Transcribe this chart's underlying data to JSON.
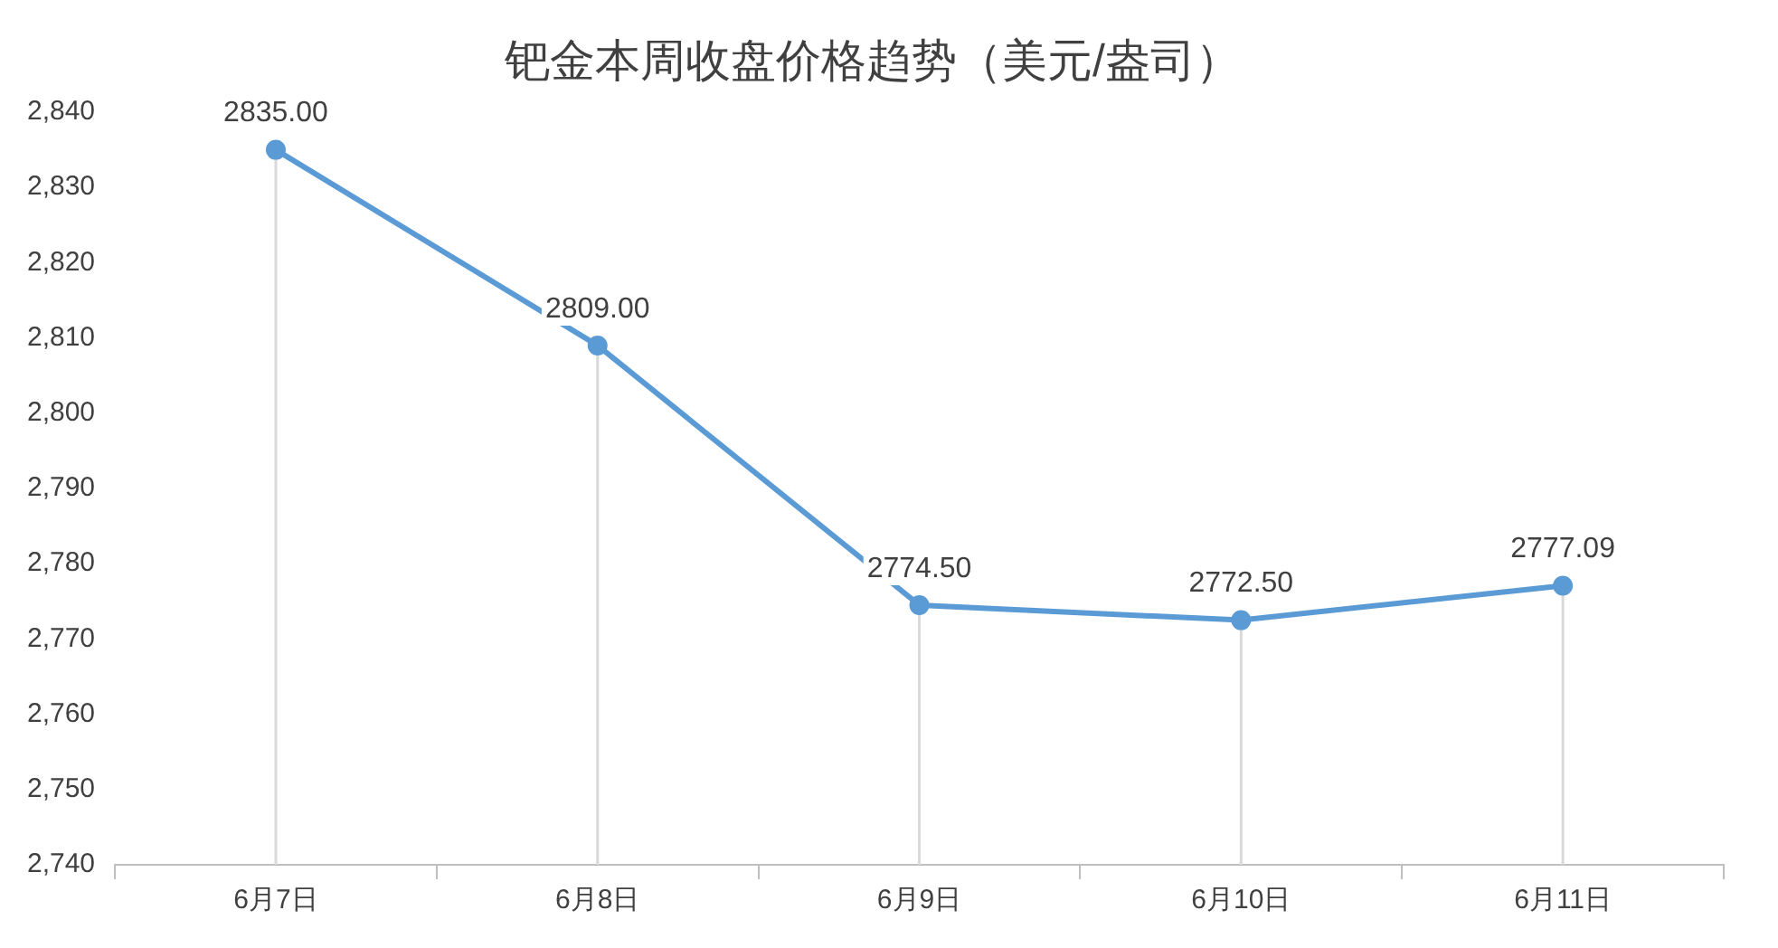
{
  "chart_data": {
    "type": "line",
    "title": "钯金本周收盘价格趋势（美元/盎司）",
    "categories": [
      "6月7日",
      "6月8日",
      "6月9日",
      "6月10日",
      "6月11日"
    ],
    "series": [
      {
        "color": "#5b9bd5",
        "values": [
          2835,
          2809,
          2774.5,
          2772.5,
          2777.09
        ],
        "value_labels": [
          "2835.00",
          "2809.00",
          "2774.50",
          "2772.50",
          "2777.09"
        ]
      }
    ],
    "ylim": [
      2740,
      2840
    ],
    "yticks": [
      {
        "value": 2740,
        "label": "2,740"
      },
      {
        "value": 2750,
        "label": "2,750"
      },
      {
        "value": 2760,
        "label": "2,760"
      },
      {
        "value": 2770,
        "label": "2,770"
      },
      {
        "value": 2780,
        "label": "2,780"
      },
      {
        "value": 2790,
        "label": "2,790"
      },
      {
        "value": 2800,
        "label": "2,800"
      },
      {
        "value": 2810,
        "label": "2,810"
      },
      {
        "value": 2820,
        "label": "2,820"
      },
      {
        "value": 2830,
        "label": "2,830"
      },
      {
        "value": 2840,
        "label": "2,840"
      }
    ],
    "grid": "x",
    "legend": false,
    "marker": "circle",
    "line_style": "solid"
  }
}
